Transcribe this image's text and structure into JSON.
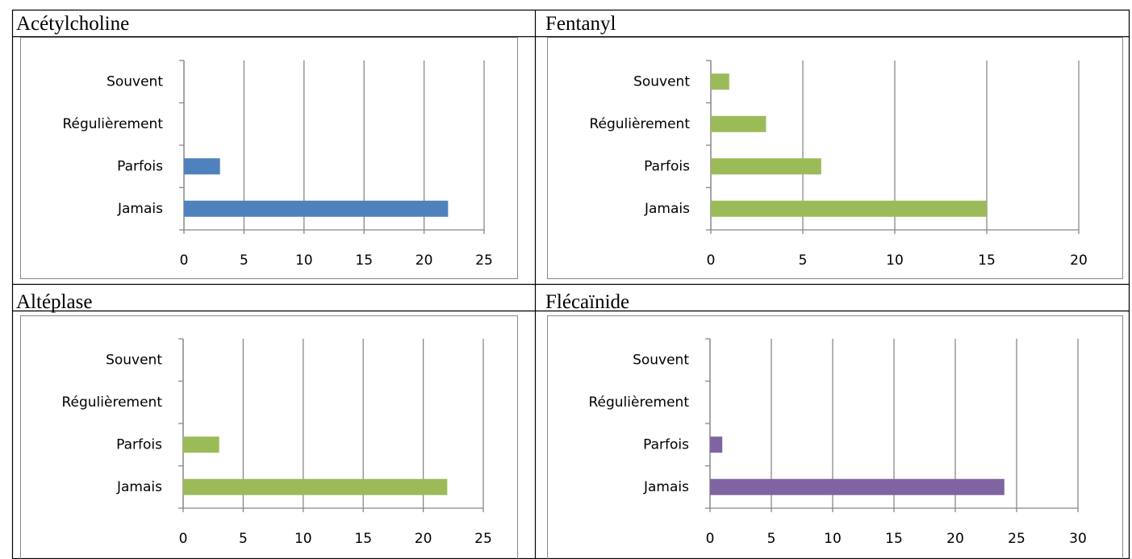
{
  "chart_data": [
    {
      "type": "bar",
      "orientation": "horizontal",
      "title": "Acétylcholine",
      "categories": [
        "Jamais",
        "Parfois",
        "Régulièrement",
        "Souvent"
      ],
      "values": [
        22,
        3,
        0,
        0
      ],
      "color": "#4f81bd",
      "xlim": [
        0,
        25
      ],
      "xticks": [
        0,
        5,
        10,
        15,
        20,
        25
      ],
      "grid": true
    },
    {
      "type": "bar",
      "orientation": "horizontal",
      "title": "Fentanyl",
      "categories": [
        "Jamais",
        "Parfois",
        "Régulièrement",
        "Souvent"
      ],
      "values": [
        15,
        6,
        3,
        1
      ],
      "color": "#9bbb59",
      "xlim": [
        0,
        20
      ],
      "xticks": [
        0,
        5,
        10,
        15,
        20
      ],
      "grid": true
    },
    {
      "type": "bar",
      "orientation": "horizontal",
      "title": "Altéplase",
      "categories": [
        "Jamais",
        "Parfois",
        "Régulièrement",
        "Souvent"
      ],
      "values": [
        22,
        3,
        0,
        0
      ],
      "color": "#9bbb59",
      "xlim": [
        0,
        25
      ],
      "xticks": [
        0,
        5,
        10,
        15,
        20,
        25
      ],
      "grid": true
    },
    {
      "type": "bar",
      "orientation": "horizontal",
      "title": "Flécaïnide",
      "categories": [
        "Jamais",
        "Parfois",
        "Régulièrement",
        "Souvent"
      ],
      "values": [
        24,
        1,
        0,
        0
      ],
      "color": "#8064a2",
      "xlim": [
        0,
        30
      ],
      "xticks": [
        0,
        5,
        10,
        15,
        20,
        25,
        30
      ],
      "grid": true
    }
  ]
}
